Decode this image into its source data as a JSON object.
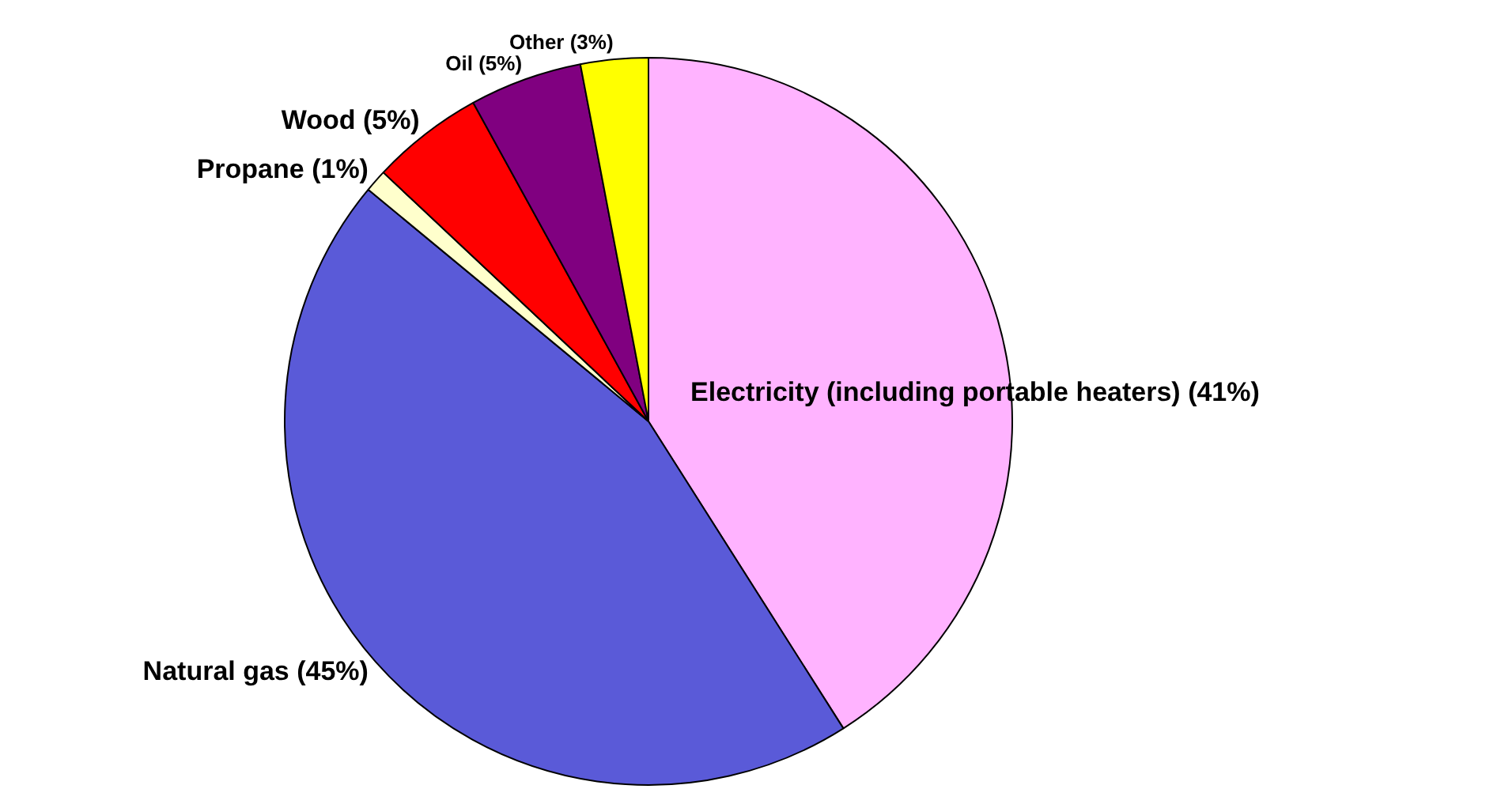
{
  "chart_data": {
    "type": "pie",
    "categories": [
      "Electricity (including portable heaters)",
      "Natural gas",
      "Propane",
      "Wood",
      "Oil",
      "Other"
    ],
    "values": [
      41,
      45,
      1,
      5,
      5,
      3
    ],
    "value_labels": [
      "(41%)",
      "(45%)",
      "(1%)",
      "(5%)",
      "(5%)",
      "(3%)"
    ],
    "colors": [
      "#ffb3ff",
      "#5a5ad8",
      "#ffffcc",
      "#ff0000",
      "#800080",
      "#ffff00"
    ],
    "legend": false
  }
}
